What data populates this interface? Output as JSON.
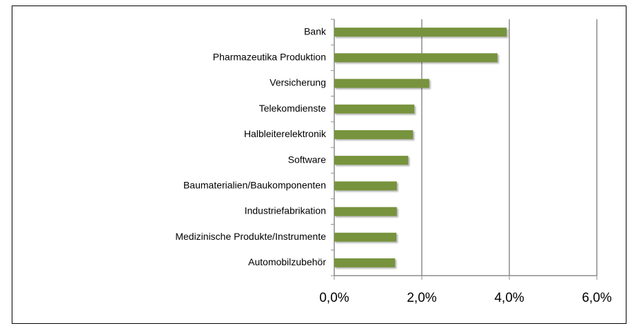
{
  "chart_data": {
    "type": "bar",
    "orientation": "horizontal",
    "categories": [
      "Bank",
      "Pharmazeutika Produktion",
      "Versicherung",
      "Telekomdienste",
      "Halbleiterelektronik",
      "Software",
      "Baumaterialien/Baukomponenten",
      "Industriefabrikation",
      "Medizinische Produkte/Instrumente",
      "Automobilzubehör"
    ],
    "values": [
      3.94,
      3.73,
      2.17,
      1.83,
      1.8,
      1.69,
      1.43,
      1.43,
      1.42,
      1.39
    ],
    "color": "#77933c",
    "xlim": [
      0,
      6
    ],
    "xticks": [
      {
        "value": 0,
        "label": "0,0%"
      },
      {
        "value": 2,
        "label": "2,0%"
      },
      {
        "value": 4,
        "label": "4,0%"
      },
      {
        "value": 6,
        "label": "6,0%"
      }
    ],
    "grid": true
  }
}
